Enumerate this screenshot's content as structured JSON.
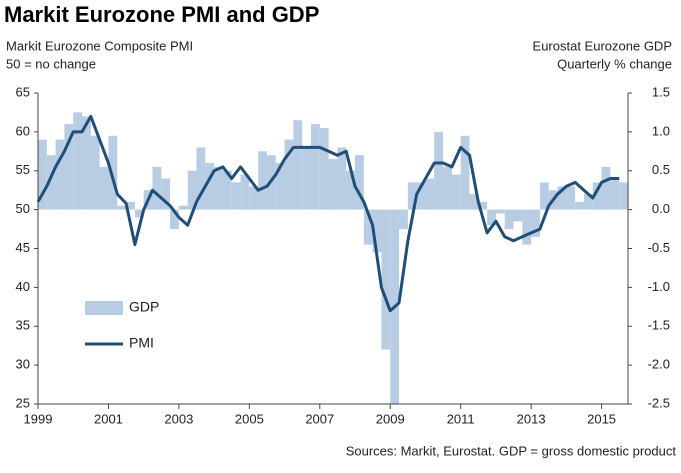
{
  "chart_data": {
    "type": "bar_line",
    "title": "Markit Eurozone PMI and GDP",
    "ylabel": [
      "Markit Eurozone Composite PMI",
      "50 = no change"
    ],
    "y2label": [
      "Eurostat Eurozone GDP",
      "Quarterly % change"
    ],
    "source": "Sources: Markit, Eurostat. GDP = gross domestic product",
    "x": [
      1999,
      1999.25,
      1999.5,
      1999.75,
      2000,
      2000.25,
      2000.5,
      2000.75,
      2001,
      2001.25,
      2001.5,
      2001.75,
      2002,
      2002.25,
      2002.5,
      2002.75,
      2003,
      2003.25,
      2003.5,
      2003.75,
      2004,
      2004.25,
      2004.5,
      2004.75,
      2005,
      2005.25,
      2005.5,
      2005.75,
      2006,
      2006.25,
      2006.5,
      2006.75,
      2007,
      2007.25,
      2007.5,
      2007.75,
      2008,
      2008.25,
      2008.5,
      2008.75,
      2009,
      2009.25,
      2009.5,
      2009.75,
      2010,
      2010.25,
      2010.5,
      2010.75,
      2011,
      2011.25,
      2011.5,
      2011.75,
      2012,
      2012.25,
      2012.5,
      2012.75,
      2013,
      2013.25,
      2013.5,
      2013.75,
      2014,
      2014.25,
      2014.5,
      2014.75,
      2015,
      2015.25,
      2015.5
    ],
    "series": [
      {
        "name": "GDP",
        "kind": "bar",
        "axis": "y2",
        "color": "#b8cce4",
        "values": [
          0.9,
          0.7,
          0.9,
          1.1,
          1.25,
          1.2,
          0.95,
          0.55,
          0.95,
          0.05,
          0.1,
          -0.1,
          0.25,
          0.55,
          0.4,
          -0.25,
          0.05,
          0.5,
          0.8,
          0.6,
          0.55,
          0.5,
          0.35,
          0.45,
          0.3,
          0.75,
          0.7,
          0.6,
          0.9,
          1.15,
          0.8,
          1.1,
          1.05,
          0.65,
          0.8,
          0.5,
          0.7,
          -0.45,
          -0.55,
          -1.8,
          -2.5,
          -0.25,
          0.35,
          0.35,
          0.4,
          1.0,
          0.55,
          0.45,
          0.95,
          0.2,
          0.1,
          -0.2,
          -0.05,
          -0.25,
          -0.15,
          -0.45,
          -0.35,
          0.35,
          0.25,
          0.3,
          0.3,
          0.1,
          0.2,
          0.35,
          0.55,
          0.4,
          0.35
        ]
      },
      {
        "name": "PMI",
        "kind": "line",
        "axis": "y",
        "color": "#1f4e79",
        "values": [
          51,
          53,
          55.5,
          57.5,
          60,
          60,
          62,
          59,
          56,
          52,
          50.8,
          45.5,
          50,
          52.5,
          51.5,
          50.5,
          49,
          48,
          51,
          53,
          55,
          55.5,
          54,
          55.5,
          54,
          52.5,
          53,
          54.5,
          56.5,
          58,
          58,
          58,
          58,
          57.5,
          57,
          57.5,
          53,
          51,
          48,
          40,
          37,
          38,
          46,
          52,
          54,
          56,
          56,
          55.5,
          58,
          57,
          51,
          47,
          48.5,
          46.5,
          46,
          46.5,
          47,
          47.5,
          50.5,
          52,
          53,
          53.5,
          52.5,
          51.5,
          53.5,
          54,
          54
        ]
      }
    ],
    "xlim": [
      1999,
      2015.75
    ],
    "xticks": [
      1999,
      2001,
      2003,
      2005,
      2007,
      2009,
      2011,
      2013,
      2015
    ],
    "ylim": [
      25,
      65
    ],
    "yticks": [
      65,
      60,
      55,
      50,
      45,
      40,
      35,
      30,
      25
    ],
    "y2lim": [
      -2.5,
      1.5
    ],
    "y2ticks": [
      1.5,
      {
        "value": 1,
        "label": "1.0"
      },
      0.5,
      {
        "value": 0,
        "label": "0.0"
      },
      -0.5,
      {
        "value": -1,
        "label": "-1.0"
      },
      -1.5,
      {
        "value": -2,
        "label": "-2.0"
      },
      -2.5
    ],
    "legend": "left"
  }
}
